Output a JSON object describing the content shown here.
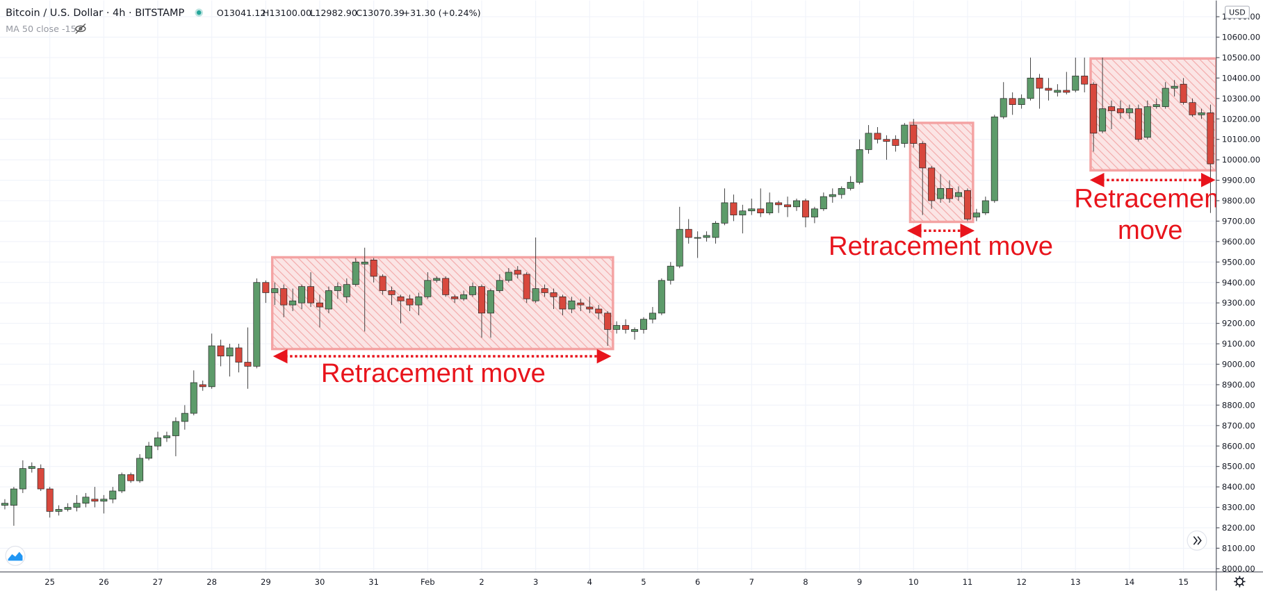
{
  "chart_data": {
    "type": "candlestick",
    "title": "Bitcoin / U.S. Dollar · 4h · BITSTAMP",
    "ohlc_legend": [
      "O13041.12",
      "H13100.00",
      "L12982.90",
      "C13070.39",
      "+31.30 (+0.24%)"
    ],
    "indicator": "MA 50 close -15",
    "currency": "USD",
    "up_color": "#5d9b6a",
    "down_color": "#d8483d",
    "categories": [
      null,
      null,
      null,
      null,
      null,
      "25",
      null,
      null,
      null,
      null,
      null,
      "26",
      null,
      null,
      null,
      null,
      null,
      "27",
      null,
      null,
      null,
      null,
      null,
      "28",
      null,
      null,
      null,
      null,
      null,
      "29",
      null,
      null,
      null,
      null,
      null,
      "30",
      null,
      null,
      null,
      null,
      null,
      "31",
      null,
      null,
      null,
      null,
      null,
      "Feb",
      null,
      null,
      null,
      null,
      null,
      "2",
      null,
      null,
      null,
      null,
      null,
      "3",
      null,
      null,
      null,
      null,
      null,
      "4",
      null,
      null,
      null,
      null,
      null,
      "5",
      null,
      null,
      null,
      null,
      null,
      "6",
      null,
      null,
      null,
      null,
      null,
      "7",
      null,
      null,
      null,
      null,
      null,
      "8",
      null,
      null,
      null,
      null,
      null,
      "9",
      null,
      null,
      null,
      null,
      null,
      "10",
      null,
      null,
      null,
      null,
      null,
      "11",
      null,
      null,
      null,
      null,
      null,
      "12",
      null,
      null,
      null,
      null,
      null,
      "13",
      null,
      null,
      null,
      null,
      null,
      "14",
      null,
      null,
      null,
      null,
      null,
      "15",
      null,
      null,
      null
    ],
    "open": [
      8310,
      8310,
      8390,
      8490,
      8490,
      8390,
      8280,
      8290,
      8300,
      8320,
      8340,
      8330,
      8340,
      8380,
      8460,
      8430,
      8540,
      8600,
      8640,
      8650,
      8720,
      8760,
      8900,
      8890,
      9090,
      9040,
      9080,
      9010,
      8990,
      9400,
      9350,
      9370,
      9290,
      9300,
      9380,
      9300,
      9270,
      9360,
      9330,
      9390,
      9490,
      9510,
      9430,
      9360,
      9330,
      9320,
      9290,
      9330,
      9410,
      9420,
      9330,
      9320,
      9340,
      9380,
      9250,
      9360,
      9410,
      9460,
      9440,
      9310,
      9370,
      9350,
      9330,
      9270,
      9300,
      9280,
      9270,
      9250,
      9170,
      9190,
      9160,
      9170,
      9220,
      9250,
      9410,
      9480,
      9660,
      9620,
      9620,
      9620,
      9690,
      9790,
      9730,
      9750,
      9760,
      9740,
      9790,
      9780,
      9770,
      9800,
      9720,
      9760,
      9820,
      9830,
      9860,
      9890,
      10050,
      10130,
      10100,
      10100,
      10080,
      10170,
      10080,
      9960,
      9810,
      9860,
      9820,
      9850,
      9720,
      9740,
      9800,
      10210,
      10300,
      10270,
      10300,
      10400,
      10350,
      10330,
      10340,
      10340,
      10410,
      10370,
      10140,
      10260,
      10250,
      10230,
      10250,
      10110,
      10260,
      10260,
      10350,
      10370,
      10280,
      10220,
      10230
    ],
    "high": [
      8340,
      8400,
      8530,
      8520,
      8510,
      8400,
      8310,
      8320,
      8360,
      8370,
      8400,
      8360,
      8400,
      8470,
      8470,
      8560,
      8620,
      8670,
      8670,
      8740,
      8800,
      8970,
      8920,
      9150,
      9120,
      9100,
      9100,
      9180,
      9420,
      9410,
      9400,
      9390,
      9370,
      9390,
      9450,
      9340,
      9380,
      9400,
      9420,
      9520,
      9570,
      9520,
      9440,
      9380,
      9340,
      9340,
      9350,
      9450,
      9430,
      9430,
      9340,
      9360,
      9400,
      9390,
      9370,
      9440,
      9470,
      9480,
      9450,
      9620,
      9390,
      9370,
      9340,
      9330,
      9320,
      9330,
      9290,
      9260,
      9210,
      9220,
      9180,
      9230,
      9280,
      9420,
      9500,
      9770,
      9710,
      9650,
      9650,
      9700,
      9860,
      9830,
      9780,
      9810,
      9860,
      9840,
      9800,
      9820,
      9810,
      9810,
      9770,
      9840,
      9860,
      9870,
      9920,
      10100,
      10170,
      10160,
      10120,
      10120,
      10180,
      10200,
      10090,
      9970,
      9930,
      9900,
      9870,
      9860,
      9760,
      9820,
      10220,
      10380,
      10330,
      10320,
      10500,
      10420,
      10400,
      10370,
      10430,
      10500,
      10500,
      10380,
      10500,
      10290,
      10290,
      10270,
      10270,
      10290,
      10300,
      10380,
      10390,
      10400,
      10300,
      10250,
      10270
    ],
    "low": [
      8290,
      8210,
      8370,
      8470,
      8380,
      8250,
      8260,
      8280,
      8280,
      8300,
      8300,
      8270,
      8320,
      8370,
      8420,
      8420,
      8530,
      8580,
      8620,
      8550,
      8680,
      8750,
      8870,
      8880,
      8990,
      8940,
      8960,
      8880,
      8980,
      9300,
      9290,
      9230,
      9260,
      9270,
      9280,
      9180,
      9250,
      9320,
      9300,
      9380,
      9160,
      9400,
      9340,
      9290,
      9200,
      9260,
      9240,
      9320,
      9400,
      9330,
      9300,
      9310,
      9330,
      9130,
      9130,
      9350,
      9400,
      9420,
      9300,
      9300,
      9330,
      9270,
      9240,
      9250,
      9260,
      9250,
      9220,
      9090,
      9150,
      9150,
      9120,
      9150,
      9200,
      9240,
      9390,
      9470,
      9590,
      9520,
      9600,
      9590,
      9680,
      9700,
      9640,
      9730,
      9720,
      9730,
      9740,
      9720,
      9750,
      9670,
      9690,
      9750,
      9790,
      9810,
      9850,
      9880,
      10030,
      10080,
      10000,
      10040,
      10060,
      10060,
      9730,
      9760,
      9790,
      9790,
      9800,
      9700,
      9700,
      9730,
      9790,
      10200,
      10220,
      10250,
      10290,
      10250,
      10290,
      10310,
      10320,
      10330,
      10330,
      10040,
      10130,
      10150,
      10200,
      10200,
      10090,
      10100,
      10250,
      10250,
      10310,
      10270,
      10210,
      10200,
      9740
    ],
    "close": [
      8320,
      8390,
      8490,
      8500,
      8390,
      8280,
      8290,
      8300,
      8320,
      8350,
      8330,
      8340,
      8380,
      8460,
      8430,
      8540,
      8600,
      8640,
      8650,
      8720,
      8760,
      8910,
      8890,
      9090,
      9040,
      9080,
      9010,
      8990,
      9400,
      9350,
      9370,
      9290,
      9310,
      9380,
      9300,
      9280,
      9360,
      9380,
      9390,
      9500,
      9500,
      9430,
      9360,
      9340,
      9310,
      9290,
      9330,
      9410,
      9420,
      9340,
      9320,
      9340,
      9380,
      9250,
      9360,
      9410,
      9450,
      9440,
      9320,
      9370,
      9350,
      9330,
      9270,
      9310,
      9290,
      9270,
      9250,
      9170,
      9190,
      9170,
      9170,
      9220,
      9250,
      9410,
      9480,
      9660,
      9620,
      9620,
      9630,
      9690,
      9790,
      9730,
      9750,
      9760,
      9740,
      9790,
      9780,
      9770,
      9800,
      9720,
      9760,
      9820,
      9830,
      9860,
      9890,
      10050,
      10130,
      10100,
      10090,
      10070,
      10170,
      10080,
      9960,
      9800,
      9860,
      9810,
      9840,
      9710,
      9740,
      9800,
      10210,
      10300,
      10270,
      10300,
      10400,
      10350,
      10340,
      10340,
      10330,
      10410,
      10370,
      10130,
      10250,
      10240,
      10230,
      10250,
      10100,
      10260,
      10270,
      10350,
      10360,
      10280,
      10220,
      10230,
      9980
    ],
    "ylim": [
      7984,
      10779
    ],
    "yticks": [
      {
        "value": 8000,
        "label": "8000.00"
      },
      {
        "value": 8100,
        "label": "8100.00"
      },
      {
        "value": 8200,
        "label": "8200.00"
      },
      {
        "value": 8300,
        "label": "8300.00"
      },
      {
        "value": 8400,
        "label": "8400.00"
      },
      {
        "value": 8500,
        "label": "8500.00"
      },
      {
        "value": 8600,
        "label": "8600.00"
      },
      {
        "value": 8700,
        "label": "8700.00"
      },
      {
        "value": 8800,
        "label": "8800.00"
      },
      {
        "value": 8900,
        "label": "8900.00"
      },
      {
        "value": 9000,
        "label": "9000.00"
      },
      {
        "value": 9100,
        "label": "9100.00"
      },
      {
        "value": 9200,
        "label": "9200.00"
      },
      {
        "value": 9300,
        "label": "9300.00"
      },
      {
        "value": 9400,
        "label": "9400.00"
      },
      {
        "value": 9500,
        "label": "9500.00"
      },
      {
        "value": 9600,
        "label": "9600.00"
      },
      {
        "value": 9700,
        "label": "9700.00"
      },
      {
        "value": 9800,
        "label": "9800.00"
      },
      {
        "value": 9900,
        "label": "9900.00"
      },
      {
        "value": 10000,
        "label": "10000.00"
      },
      {
        "value": 10100,
        "label": "10100.00"
      },
      {
        "value": 10200,
        "label": "10200.00"
      },
      {
        "value": 10300,
        "label": "10300.00"
      },
      {
        "value": 10400,
        "label": "10400.00"
      },
      {
        "value": 10500,
        "label": "10500.00"
      },
      {
        "value": 10600,
        "label": "10600.00"
      },
      {
        "value": 10700,
        "label": "10700.00"
      }
    ],
    "grid": true,
    "annotations": [
      "Retracement move",
      "Retracement move",
      [
        "Retracement",
        "move"
      ]
    ]
  }
}
